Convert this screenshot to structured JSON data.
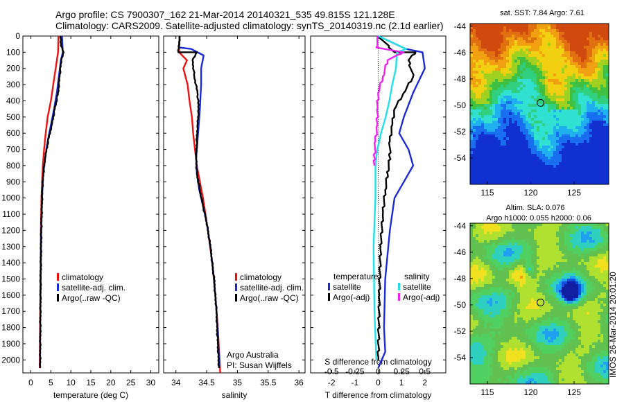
{
  "header": {
    "line1": "Argo profile: CS 7900307_162 21-Mar-2014 20140321_535 49.815S 121.128E",
    "line2": "Climatology: CARS2009. Satellite-adjusted climatology: synTS_20140319.nc (2.1d earlier)"
  },
  "colors": {
    "climatology": "#ee1111",
    "satellite": "#1a2ad6",
    "argo": "#000000",
    "sal_satellite": "#22e0e8",
    "sal_argo": "#ee22ee"
  },
  "depth_ticks": [
    "0",
    "100",
    "200",
    "300",
    "400",
    "500",
    "600",
    "700",
    "800",
    "900",
    "1000",
    "1100",
    "1200",
    "1300",
    "1400",
    "1500",
    "1600",
    "1700",
    "1800",
    "1900",
    "2000"
  ],
  "chart_data": [
    {
      "type": "line",
      "name": "temperature profile",
      "xlabel": "temperature (deg C)",
      "xlim": [
        -2,
        32
      ],
      "ylim": [
        2080,
        0
      ],
      "xticks": [
        "0",
        "5",
        "10",
        "15",
        "20",
        "25",
        "30"
      ],
      "legend": {
        "position": "middle",
        "entries": [
          "climatology",
          "satellite-adj. clim.",
          "Argo(..raw -QC)"
        ]
      },
      "series": [
        {
          "name": "climatology",
          "points": [
            [
              6.9,
              0
            ],
            [
              6.8,
              100
            ],
            [
              6.2,
              200
            ],
            [
              5.6,
              300
            ],
            [
              5.0,
              400
            ],
            [
              4.2,
              500
            ],
            [
              3.7,
              600
            ],
            [
              3.3,
              700
            ],
            [
              3.0,
              800
            ],
            [
              2.8,
              900
            ],
            [
              2.65,
              1000
            ],
            [
              2.5,
              1200
            ],
            [
              2.4,
              1500
            ],
            [
              2.3,
              1800
            ],
            [
              2.2,
              2050
            ]
          ]
        },
        {
          "name": "satellite-adj. clim.",
          "points": [
            [
              7.8,
              0
            ],
            [
              8.0,
              100
            ],
            [
              7.5,
              150
            ],
            [
              7.0,
              250
            ],
            [
              6.5,
              350
            ],
            [
              5.8,
              450
            ],
            [
              5.0,
              550
            ],
            [
              4.2,
              650
            ],
            [
              3.6,
              750
            ],
            [
              3.1,
              850
            ],
            [
              2.8,
              1000
            ],
            [
              2.6,
              1200
            ],
            [
              2.45,
              1500
            ],
            [
              2.35,
              1800
            ],
            [
              2.3,
              2050
            ]
          ]
        },
        {
          "name": "Argo(..raw -QC)",
          "points": [
            [
              7.4,
              0
            ],
            [
              7.5,
              60
            ],
            [
              8.2,
              100
            ],
            [
              7.6,
              150
            ],
            [
              7.2,
              250
            ],
            [
              6.8,
              350
            ],
            [
              6.0,
              450
            ],
            [
              5.2,
              550
            ],
            [
              4.3,
              650
            ],
            [
              3.6,
              750
            ],
            [
              3.1,
              850
            ],
            [
              2.85,
              950
            ],
            [
              2.6,
              1200
            ],
            [
              2.45,
              1500
            ],
            [
              2.35,
              1800
            ],
            [
              2.3,
              2050
            ]
          ]
        }
      ]
    },
    {
      "type": "line",
      "name": "salinity profile",
      "xlabel": "salinity",
      "xlim": [
        33.8,
        36.1
      ],
      "ylim": [
        2080,
        0
      ],
      "xticks": [
        "34",
        "34.5",
        "35",
        "35.5",
        "36"
      ],
      "legend": {
        "position": "middle",
        "entries": [
          "climatology",
          "satellite-adj. clim.",
          "Argo(..raw -QC)"
        ]
      },
      "series": [
        {
          "name": "climatology",
          "points": [
            [
              34.06,
              0
            ],
            [
              34.05,
              100
            ],
            [
              34.18,
              150
            ],
            [
              34.12,
              200
            ],
            [
              34.19,
              300
            ],
            [
              34.22,
              400
            ],
            [
              34.26,
              500
            ],
            [
              34.28,
              600
            ],
            [
              34.31,
              700
            ],
            [
              34.34,
              800
            ],
            [
              34.39,
              900
            ],
            [
              34.44,
              1000
            ],
            [
              34.52,
              1200
            ],
            [
              34.59,
              1400
            ],
            [
              34.64,
              1600
            ],
            [
              34.68,
              1800
            ],
            [
              34.71,
              2000
            ],
            [
              34.72,
              2080
            ]
          ]
        },
        {
          "name": "satellite-adj. clim.",
          "points": [
            [
              34.06,
              0
            ],
            [
              34.05,
              70
            ],
            [
              34.25,
              80
            ],
            [
              34.45,
              120
            ],
            [
              34.41,
              200
            ],
            [
              34.41,
              300
            ],
            [
              34.39,
              450
            ],
            [
              34.37,
              550
            ],
            [
              34.35,
              650
            ],
            [
              34.33,
              750
            ],
            [
              34.34,
              850
            ],
            [
              34.38,
              950
            ],
            [
              34.44,
              1050
            ],
            [
              34.5,
              1150
            ],
            [
              34.56,
              1300
            ],
            [
              34.62,
              1500
            ],
            [
              34.66,
              1700
            ],
            [
              34.69,
              1900
            ],
            [
              34.71,
              2050
            ]
          ]
        },
        {
          "name": "Argo(..raw -QC)",
          "points": [
            [
              34.06,
              0
            ],
            [
              34.04,
              100
            ],
            [
              34.34,
              100
            ],
            [
              34.27,
              150
            ],
            [
              34.3,
              250
            ],
            [
              34.35,
              350
            ],
            [
              34.37,
              450
            ],
            [
              34.35,
              550
            ],
            [
              34.34,
              650
            ],
            [
              34.33,
              750
            ],
            [
              34.34,
              850
            ],
            [
              34.39,
              950
            ],
            [
              34.44,
              1050
            ],
            [
              34.5,
              1150
            ],
            [
              34.56,
              1300
            ],
            [
              34.62,
              1500
            ],
            [
              34.66,
              1700
            ],
            [
              34.68,
              1900
            ],
            [
              34.7,
              2050
            ]
          ]
        }
      ],
      "annotations": [
        "Argo Australia",
        "PI: Susan Wijffels"
      ]
    },
    {
      "type": "line",
      "name": "difference from climatology",
      "xlabel": "T difference from climatology",
      "xlabel_top": "S difference from climatology",
      "xlim": [
        -2.9,
        2.9
      ],
      "ylim": [
        2080,
        0
      ],
      "xticks_bottom": [
        "-2",
        "-1",
        "0",
        "1",
        "2"
      ],
      "xticks_top": [
        "-0.5",
        "-0.25",
        "0",
        "0.25",
        "0.5"
      ],
      "legend": {
        "position": "middle",
        "groups": [
          {
            "title": "temperature",
            "entries": [
              "satellite",
              "Argo(-adj)"
            ]
          },
          {
            "title": "salinity",
            "entries": [
              "satellite",
              "Argo(-adj)"
            ]
          }
        ]
      },
      "series": [
        {
          "name": "temperature satellite",
          "points": [
            [
              0,
              0
            ],
            [
              1.2,
              80
            ],
            [
              1.9,
              100
            ],
            [
              2.0,
              200
            ],
            [
              1.5,
              350
            ],
            [
              1.1,
              500
            ],
            [
              0.9,
              600
            ],
            [
              1.3,
              700
            ],
            [
              1.5,
              800
            ],
            [
              1.1,
              900
            ],
            [
              0.7,
              1000
            ],
            [
              0.5,
              1200
            ],
            [
              0.3,
              1500
            ],
            [
              0.25,
              1800
            ],
            [
              0.3,
              1950
            ],
            [
              0.0,
              2050
            ]
          ]
        },
        {
          "name": "temperature Argo(-adj)",
          "points": [
            [
              0,
              0
            ],
            [
              0.7,
              100
            ],
            [
              1.6,
              100
            ],
            [
              1.3,
              150
            ],
            [
              1.5,
              250
            ],
            [
              1.1,
              350
            ],
            [
              0.7,
              450
            ],
            [
              0.6,
              550
            ],
            [
              0.5,
              650
            ],
            [
              0.5,
              750
            ],
            [
              0.4,
              850
            ],
            [
              0.3,
              950
            ],
            [
              0.2,
              1100
            ],
            [
              0.1,
              1300
            ],
            [
              0.05,
              1600
            ],
            [
              0.0,
              2000
            ]
          ]
        },
        {
          "name": "salinity satellite",
          "points": [
            [
              0,
              0
            ],
            [
              0.3,
              80
            ],
            [
              0.2,
              100
            ],
            [
              0.19,
              200
            ],
            [
              0.15,
              300
            ],
            [
              0.12,
              400
            ],
            [
              0.08,
              500
            ],
            [
              0.03,
              600
            ],
            [
              -0.01,
              700
            ],
            [
              -0.03,
              800
            ],
            [
              -0.03,
              1000
            ],
            [
              -0.05,
              1300
            ],
            [
              -0.04,
              1700
            ],
            [
              -0.02,
              2000
            ]
          ]
        },
        {
          "name": "salinity Argo(-adj)",
          "points": [
            [
              0,
              0
            ],
            [
              -0.02,
              70
            ],
            [
              0.27,
              100
            ],
            [
              0.1,
              150
            ],
            [
              0.05,
              250
            ],
            [
              0.0,
              350
            ],
            [
              -0.01,
              450
            ],
            [
              -0.01,
              550
            ],
            [
              -0.03,
              650
            ],
            [
              -0.04,
              750
            ],
            [
              -0.04,
              800
            ]
          ]
        }
      ]
    },
    {
      "type": "heatmap",
      "name": "satellite SST map",
      "title": "sat. SST: 7.84  Argo: 7.61",
      "xlim": [
        113,
        129
      ],
      "ylim": [
        -56,
        -43.8
      ],
      "xticks": [
        "115",
        "120",
        "125"
      ],
      "yticks": [
        "-44",
        "-46",
        "-48",
        "-50",
        "-52",
        "-54"
      ],
      "float_position": [
        121.128,
        -49.815
      ]
    },
    {
      "type": "heatmap",
      "name": "altimetry SLA map",
      "title": "Altim. SLA: 0.076",
      "subtitle": "Argo h1000: 0.055  h2000: 0.06",
      "xlim": [
        113,
        129
      ],
      "ylim": [
        -56,
        -43.8
      ],
      "xticks": [
        "115",
        "120",
        "125"
      ],
      "yticks": [
        "-44",
        "-46",
        "-48",
        "-50",
        "-52",
        "-54"
      ],
      "float_position": [
        121.128,
        -49.815
      ]
    }
  ],
  "side_stamp": "IMOS 26-Mar-2014 20:01:20"
}
